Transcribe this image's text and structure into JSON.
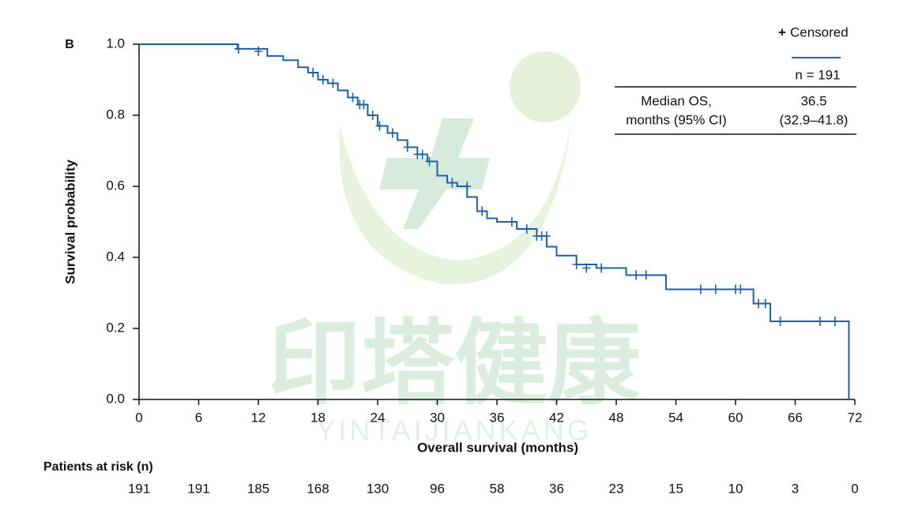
{
  "chart_data": {
    "type": "kaplan-meier",
    "panel_label": "B",
    "x_label": "Overall survival (months)",
    "y_label": "Survival probability",
    "xlim": [
      0,
      72
    ],
    "ylim": [
      0,
      1
    ],
    "xticks": [
      0,
      6,
      12,
      18,
      24,
      30,
      36,
      42,
      48,
      54,
      60,
      66,
      72
    ],
    "yticks": [
      {
        "value": 0,
        "label": "0.0"
      },
      0.2,
      0.4,
      0.6,
      0.8,
      {
        "value": 1,
        "label": "1.0"
      }
    ],
    "color": "#1f5fa8",
    "curve": {
      "x": [
        0,
        9.9,
        12.9,
        14.5,
        16,
        17,
        18,
        19,
        20,
        21,
        22,
        23,
        24,
        25,
        26,
        27,
        28,
        29,
        30,
        31,
        32,
        33,
        34,
        35,
        36,
        38,
        40,
        41,
        42,
        44,
        46,
        49,
        53,
        61.8,
        63.5,
        71.4
      ],
      "y": [
        1.0,
        0.987,
        0.967,
        0.955,
        0.935,
        0.92,
        0.9,
        0.89,
        0.87,
        0.85,
        0.83,
        0.8,
        0.77,
        0.75,
        0.73,
        0.71,
        0.69,
        0.67,
        0.63,
        0.61,
        0.6,
        0.57,
        0.53,
        0.51,
        0.5,
        0.48,
        0.46,
        0.43,
        0.405,
        0.38,
        0.37,
        0.35,
        0.31,
        0.27,
        0.22,
        0.0
      ]
    },
    "censored": {
      "name": "Censored",
      "symbol": "+",
      "x": [
        10,
        12,
        17.5,
        18.5,
        19.5,
        21.5,
        22.2,
        22.6,
        23.5,
        24.2,
        25.5,
        27,
        28,
        28.5,
        29.2,
        31.5,
        33,
        34.5,
        37.5,
        39,
        40,
        40.5,
        41,
        44,
        45,
        46.5,
        50,
        51,
        56.5,
        58,
        60,
        60.5,
        62.3,
        63,
        64.5,
        68.5,
        70
      ],
      "y": [
        0.987,
        0.98,
        0.92,
        0.9,
        0.89,
        0.85,
        0.83,
        0.83,
        0.8,
        0.77,
        0.75,
        0.71,
        0.69,
        0.69,
        0.67,
        0.61,
        0.6,
        0.53,
        0.5,
        0.48,
        0.46,
        0.46,
        0.46,
        0.38,
        0.37,
        0.37,
        0.35,
        0.35,
        0.31,
        0.31,
        0.31,
        0.31,
        0.27,
        0.27,
        0.22,
        0.22,
        0.22
      ]
    },
    "summary_table": {
      "column_header": "n = 191",
      "row_label": [
        "Median OS,",
        "months (95% CI)"
      ],
      "row_value": [
        "36.5",
        "(32.9–41.8)"
      ]
    },
    "risk_table": {
      "title": "Patients at risk (n)",
      "values": [
        191,
        191,
        185,
        168,
        130,
        96,
        58,
        36,
        23,
        15,
        10,
        3,
        0
      ]
    },
    "watermark": {
      "text": "印塔健康",
      "subtext": "YINTAIJIANKANG"
    }
  }
}
